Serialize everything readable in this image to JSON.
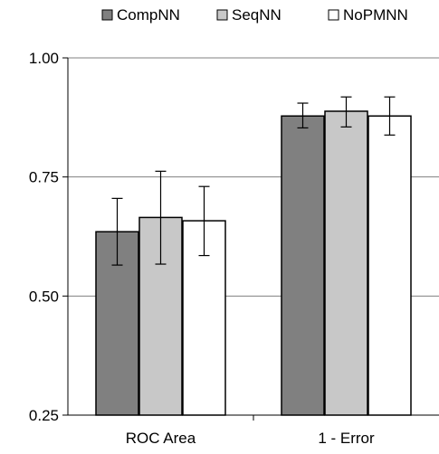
{
  "chart_data": {
    "type": "bar",
    "categories": [
      "ROC Area",
      "1 - Error"
    ],
    "series": [
      {
        "name": "CompNN",
        "color": "#808080",
        "values": [
          0.635,
          0.878
        ],
        "err_low": [
          0.565,
          0.853
        ],
        "err_high": [
          0.705,
          0.905
        ]
      },
      {
        "name": "SeqNN",
        "color": "#c8c8c8",
        "values": [
          0.665,
          0.888
        ],
        "err_low": [
          0.567,
          0.855
        ],
        "err_high": [
          0.762,
          0.918
        ]
      },
      {
        "name": "NoPMNN",
        "color": "#ffffff",
        "values": [
          0.658,
          0.878
        ],
        "err_low": [
          0.585,
          0.838
        ],
        "err_high": [
          0.73,
          0.918
        ]
      }
    ],
    "ylim": [
      0.25,
      1.0
    ],
    "yticks": [
      "0.25",
      "0.50",
      "0.75",
      "1.00"
    ],
    "grid": true,
    "legend_position": "top",
    "title": "",
    "xlabel": "",
    "ylabel": ""
  }
}
